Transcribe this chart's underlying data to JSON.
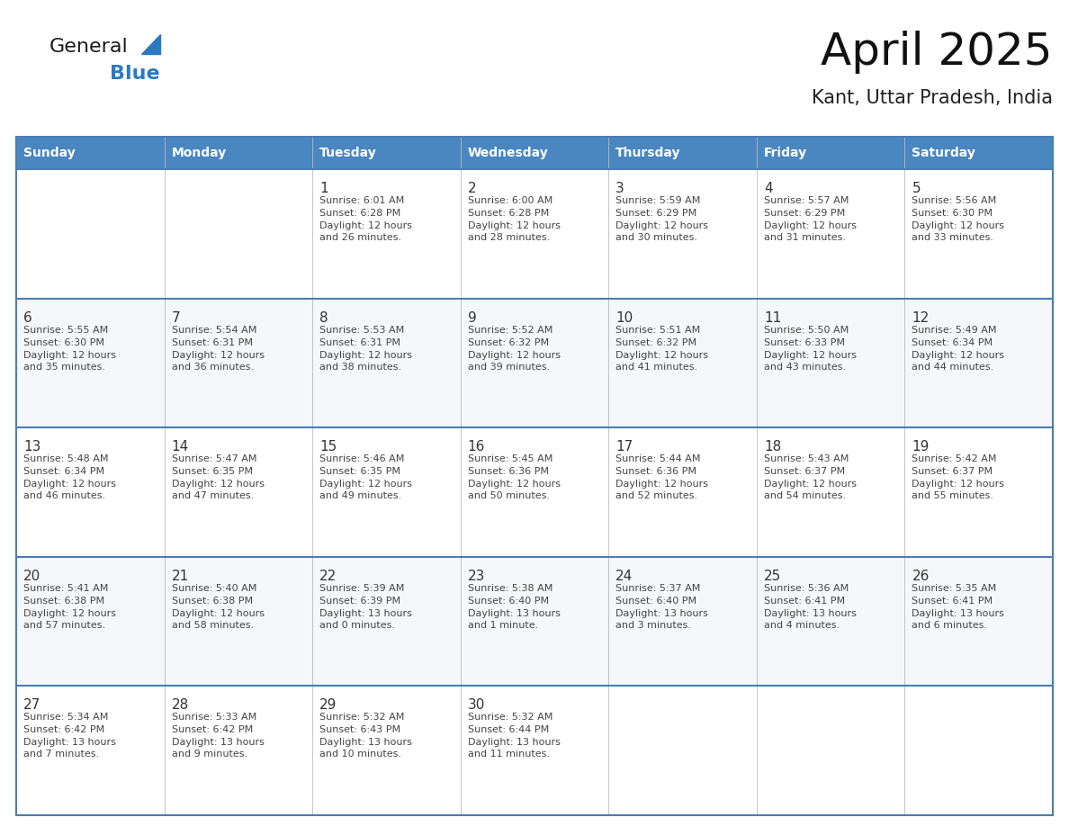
{
  "title": "April 2025",
  "subtitle": "Kant, Uttar Pradesh, India",
  "header_bg": "#4a86c0",
  "header_text": "#ffffff",
  "cell_bg_white": "#ffffff",
  "cell_bg_light": "#f5f7fa",
  "day_number_color": "#333333",
  "text_color": "#444444",
  "line_color": "#4a7db5",
  "logo_general_color": "#1a1a1a",
  "logo_blue_color": "#2a7abf",
  "days_of_week": [
    "Sunday",
    "Monday",
    "Tuesday",
    "Wednesday",
    "Thursday",
    "Friday",
    "Saturday"
  ],
  "weeks": [
    [
      {
        "day": "",
        "sunrise": "",
        "sunset": "",
        "daylight": ""
      },
      {
        "day": "",
        "sunrise": "",
        "sunset": "",
        "daylight": ""
      },
      {
        "day": "1",
        "sunrise": "Sunrise: 6:01 AM",
        "sunset": "Sunset: 6:28 PM",
        "daylight": "Daylight: 12 hours\nand 26 minutes."
      },
      {
        "day": "2",
        "sunrise": "Sunrise: 6:00 AM",
        "sunset": "Sunset: 6:28 PM",
        "daylight": "Daylight: 12 hours\nand 28 minutes."
      },
      {
        "day": "3",
        "sunrise": "Sunrise: 5:59 AM",
        "sunset": "Sunset: 6:29 PM",
        "daylight": "Daylight: 12 hours\nand 30 minutes."
      },
      {
        "day": "4",
        "sunrise": "Sunrise: 5:57 AM",
        "sunset": "Sunset: 6:29 PM",
        "daylight": "Daylight: 12 hours\nand 31 minutes."
      },
      {
        "day": "5",
        "sunrise": "Sunrise: 5:56 AM",
        "sunset": "Sunset: 6:30 PM",
        "daylight": "Daylight: 12 hours\nand 33 minutes."
      }
    ],
    [
      {
        "day": "6",
        "sunrise": "Sunrise: 5:55 AM",
        "sunset": "Sunset: 6:30 PM",
        "daylight": "Daylight: 12 hours\nand 35 minutes."
      },
      {
        "day": "7",
        "sunrise": "Sunrise: 5:54 AM",
        "sunset": "Sunset: 6:31 PM",
        "daylight": "Daylight: 12 hours\nand 36 minutes."
      },
      {
        "day": "8",
        "sunrise": "Sunrise: 5:53 AM",
        "sunset": "Sunset: 6:31 PM",
        "daylight": "Daylight: 12 hours\nand 38 minutes."
      },
      {
        "day": "9",
        "sunrise": "Sunrise: 5:52 AM",
        "sunset": "Sunset: 6:32 PM",
        "daylight": "Daylight: 12 hours\nand 39 minutes."
      },
      {
        "day": "10",
        "sunrise": "Sunrise: 5:51 AM",
        "sunset": "Sunset: 6:32 PM",
        "daylight": "Daylight: 12 hours\nand 41 minutes."
      },
      {
        "day": "11",
        "sunrise": "Sunrise: 5:50 AM",
        "sunset": "Sunset: 6:33 PM",
        "daylight": "Daylight: 12 hours\nand 43 minutes."
      },
      {
        "day": "12",
        "sunrise": "Sunrise: 5:49 AM",
        "sunset": "Sunset: 6:34 PM",
        "daylight": "Daylight: 12 hours\nand 44 minutes."
      }
    ],
    [
      {
        "day": "13",
        "sunrise": "Sunrise: 5:48 AM",
        "sunset": "Sunset: 6:34 PM",
        "daylight": "Daylight: 12 hours\nand 46 minutes."
      },
      {
        "day": "14",
        "sunrise": "Sunrise: 5:47 AM",
        "sunset": "Sunset: 6:35 PM",
        "daylight": "Daylight: 12 hours\nand 47 minutes."
      },
      {
        "day": "15",
        "sunrise": "Sunrise: 5:46 AM",
        "sunset": "Sunset: 6:35 PM",
        "daylight": "Daylight: 12 hours\nand 49 minutes."
      },
      {
        "day": "16",
        "sunrise": "Sunrise: 5:45 AM",
        "sunset": "Sunset: 6:36 PM",
        "daylight": "Daylight: 12 hours\nand 50 minutes."
      },
      {
        "day": "17",
        "sunrise": "Sunrise: 5:44 AM",
        "sunset": "Sunset: 6:36 PM",
        "daylight": "Daylight: 12 hours\nand 52 minutes."
      },
      {
        "day": "18",
        "sunrise": "Sunrise: 5:43 AM",
        "sunset": "Sunset: 6:37 PM",
        "daylight": "Daylight: 12 hours\nand 54 minutes."
      },
      {
        "day": "19",
        "sunrise": "Sunrise: 5:42 AM",
        "sunset": "Sunset: 6:37 PM",
        "daylight": "Daylight: 12 hours\nand 55 minutes."
      }
    ],
    [
      {
        "day": "20",
        "sunrise": "Sunrise: 5:41 AM",
        "sunset": "Sunset: 6:38 PM",
        "daylight": "Daylight: 12 hours\nand 57 minutes."
      },
      {
        "day": "21",
        "sunrise": "Sunrise: 5:40 AM",
        "sunset": "Sunset: 6:38 PM",
        "daylight": "Daylight: 12 hours\nand 58 minutes."
      },
      {
        "day": "22",
        "sunrise": "Sunrise: 5:39 AM",
        "sunset": "Sunset: 6:39 PM",
        "daylight": "Daylight: 13 hours\nand 0 minutes."
      },
      {
        "day": "23",
        "sunrise": "Sunrise: 5:38 AM",
        "sunset": "Sunset: 6:40 PM",
        "daylight": "Daylight: 13 hours\nand 1 minute."
      },
      {
        "day": "24",
        "sunrise": "Sunrise: 5:37 AM",
        "sunset": "Sunset: 6:40 PM",
        "daylight": "Daylight: 13 hours\nand 3 minutes."
      },
      {
        "day": "25",
        "sunrise": "Sunrise: 5:36 AM",
        "sunset": "Sunset: 6:41 PM",
        "daylight": "Daylight: 13 hours\nand 4 minutes."
      },
      {
        "day": "26",
        "sunrise": "Sunrise: 5:35 AM",
        "sunset": "Sunset: 6:41 PM",
        "daylight": "Daylight: 13 hours\nand 6 minutes."
      }
    ],
    [
      {
        "day": "27",
        "sunrise": "Sunrise: 5:34 AM",
        "sunset": "Sunset: 6:42 PM",
        "daylight": "Daylight: 13 hours\nand 7 minutes."
      },
      {
        "day": "28",
        "sunrise": "Sunrise: 5:33 AM",
        "sunset": "Sunset: 6:42 PM",
        "daylight": "Daylight: 13 hours\nand 9 minutes."
      },
      {
        "day": "29",
        "sunrise": "Sunrise: 5:32 AM",
        "sunset": "Sunset: 6:43 PM",
        "daylight": "Daylight: 13 hours\nand 10 minutes."
      },
      {
        "day": "30",
        "sunrise": "Sunrise: 5:32 AM",
        "sunset": "Sunset: 6:44 PM",
        "daylight": "Daylight: 13 hours\nand 11 minutes."
      },
      {
        "day": "",
        "sunrise": "",
        "sunset": "",
        "daylight": ""
      },
      {
        "day": "",
        "sunrise": "",
        "sunset": "",
        "daylight": ""
      },
      {
        "day": "",
        "sunrise": "",
        "sunset": "",
        "daylight": ""
      }
    ]
  ]
}
